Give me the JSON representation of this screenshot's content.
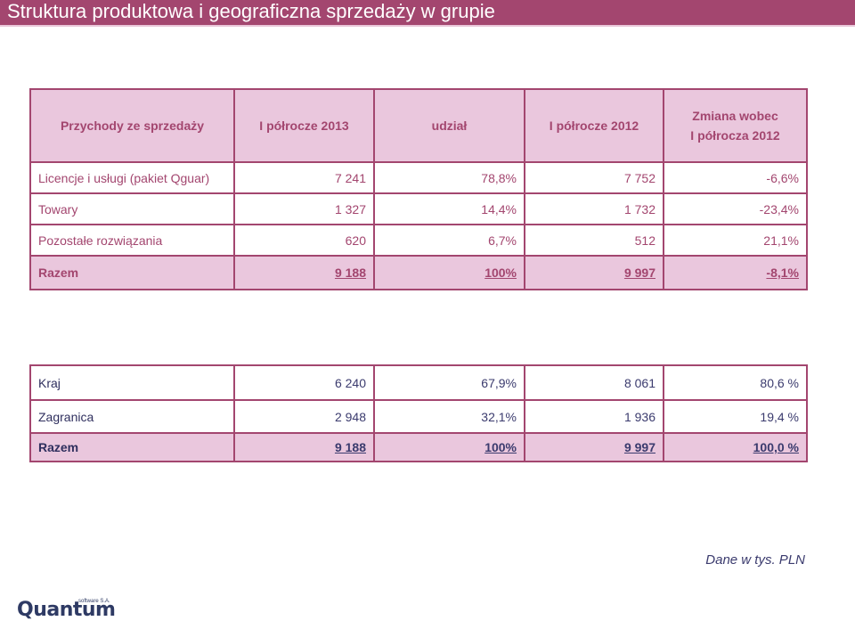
{
  "header": {
    "title": "Struktura produktowa i geograficzna sprzedaży w grupie"
  },
  "accent_color": "#a3466f",
  "table_product": {
    "columns": [
      "Przychody ze sprzedaży",
      "I półrocze 2013",
      "udział",
      "I półrocze 2012",
      "Zmiana wobec",
      "I półrocza 2012"
    ],
    "rows": [
      [
        "Licencje i usługi (pakiet Qguar)",
        "7 241",
        "78,8%",
        "7 752",
        "-6,6%"
      ],
      [
        "Towary",
        "1 327",
        "14,4%",
        "1 732",
        "-23,4%"
      ],
      [
        "Pozostałe rozwiązania",
        "620",
        "6,7%",
        "512",
        "21,1%"
      ]
    ],
    "total": [
      "Razem",
      "9 188",
      "100%",
      "9 997",
      "-8,1%"
    ]
  },
  "table_geo": {
    "rows": [
      [
        "Kraj",
        "6 240",
        "67,9%",
        "8 061",
        "80,6 %"
      ],
      [
        "Zagranica",
        "2 948",
        "32,1%",
        "1 936",
        "19,4 %"
      ]
    ],
    "total": [
      "Razem",
      "9 188",
      "100%",
      "9 997",
      "100,0 %"
    ]
  },
  "footer": {
    "note": "Dane w tys. PLN",
    "logo_text": "Quantum",
    "logo_sub": "software S.A."
  }
}
